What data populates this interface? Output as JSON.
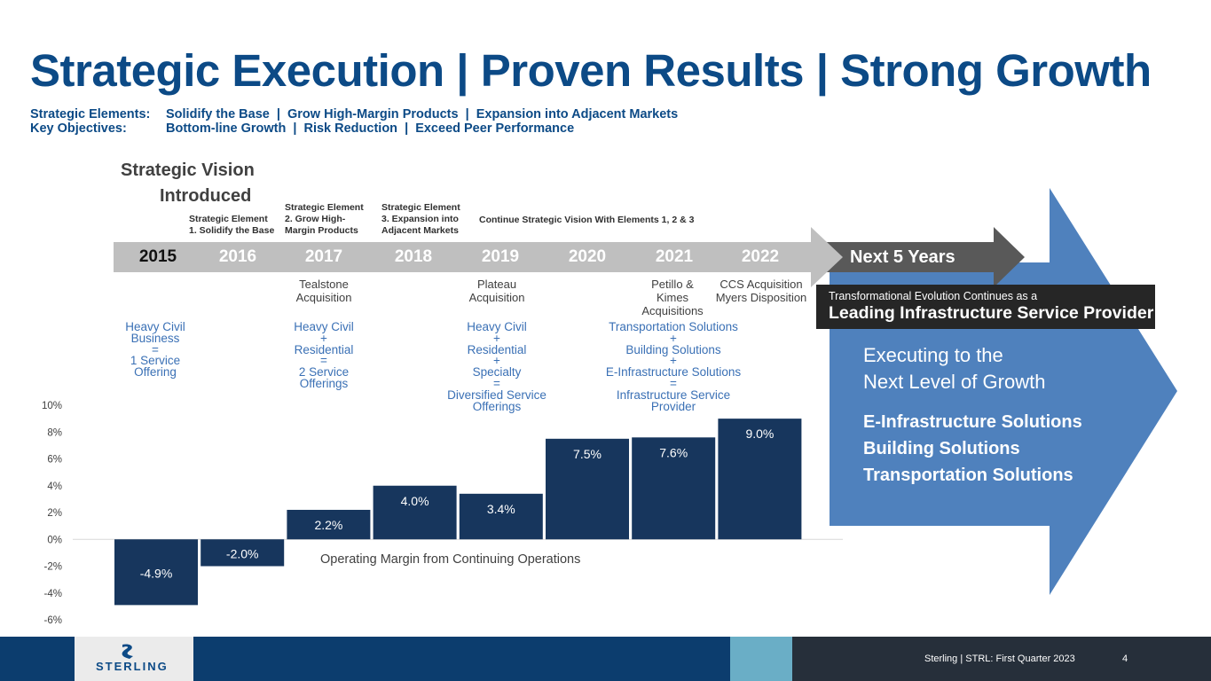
{
  "title": "Strategic Execution | Proven Results | Strong Growth",
  "strategic_elements": {
    "label": "Strategic Elements:",
    "text": "Solidify the Base  |  Grow High-Margin Products  |  Expansion into Adjacent Markets"
  },
  "key_objectives": {
    "label": "Key Objectives:",
    "text": "Bottom-line Growth  |  Risk Reduction  |  Exceed Peer Performance"
  },
  "vision": {
    "line1": "Strategic Vision",
    "line2": "Introduced"
  },
  "strategic_element_notes": [
    {
      "line1": "Strategic Element",
      "line2": "1. Solidify the Base"
    },
    {
      "line1": "Strategic Element",
      "line2": "2. Grow High-",
      "line3": "Margin Products"
    },
    {
      "line1": "Strategic Element",
      "line2": "3. Expansion into",
      "line3": "Adjacent Markets"
    },
    {
      "line1": "Continue Strategic Vision With Elements 1, 2 & 3"
    }
  ],
  "timeline": {
    "years": [
      "2015",
      "2016",
      "2017",
      "2018",
      "2019",
      "2020",
      "2021",
      "2022"
    ],
    "next": "Next 5 Years"
  },
  "acquisitions": [
    {
      "line1": "Tealstone",
      "line2": "Acquisition"
    },
    {
      "line1": "Plateau",
      "line2": "Acquisition"
    },
    {
      "line1": "Petillo &",
      "line2": "Kimes",
      "line3": "Acquisitions"
    },
    {
      "line1": "CCS Acquisition",
      "line2": "Myers Disposition"
    }
  ],
  "offerings": [
    {
      "lines": [
        "Heavy Civil",
        "Business",
        "=",
        "1 Service",
        "Offering"
      ]
    },
    {
      "lines": [
        "Heavy Civil",
        "+",
        "Residential",
        "=",
        "2 Service",
        "Offerings"
      ]
    },
    {
      "lines": [
        "Heavy Civil",
        "+",
        "Residential",
        "+",
        "Specialty",
        "=",
        "Diversified Service",
        "Offerings"
      ]
    },
    {
      "lines": [
        "Transportation Solutions",
        "+",
        "Building Solutions",
        "+",
        "E-Infrastructure Solutions",
        "=",
        "Infrastructure Service",
        "Provider"
      ]
    }
  ],
  "transformation": {
    "line1": "Transformational Evolution Continues as a",
    "line2": "Leading Infrastructure Service Provider"
  },
  "executing": {
    "line1": "Executing to the",
    "line2": "Next Level of Growth"
  },
  "solutions": [
    "E-Infrastructure Solutions",
    "Building Solutions",
    "Transportation Solutions"
  ],
  "chart_data": {
    "type": "bar",
    "categories": [
      "2015",
      "2016",
      "2017",
      "2018",
      "2019",
      "2020",
      "2021",
      "2022"
    ],
    "values": [
      -4.9,
      -2.0,
      2.2,
      4.0,
      3.4,
      7.5,
      7.6,
      9.0
    ],
    "data_labels": [
      "-4.9%",
      "-2.0%",
      "2.2%",
      "4.0%",
      "3.4%",
      "7.5%",
      "7.6%",
      "9.0%"
    ],
    "series_label": "Operating Margin from Continuing Operations",
    "ylim": [
      -6,
      10
    ],
    "yticks": [
      "10%",
      "8%",
      "6%",
      "4%",
      "2%",
      "0%",
      "-2%",
      "-4%",
      "-6%"
    ],
    "ytick_values": [
      10,
      8,
      6,
      4,
      2,
      0,
      -2,
      -4,
      -6
    ],
    "grid": false,
    "colors": {
      "bar": "#17365d",
      "label": "#ffffff",
      "baseline": "#d9d9d9"
    }
  },
  "footer": {
    "logo_text": "STERLING",
    "text": "Sterling | STRL:  First Quarter 2023",
    "page": "4",
    "colors": {
      "navy": "#0c3d6e",
      "light_blue": "#6aaec6",
      "dark": "#262f3a",
      "logo_bg": "#ebebeb"
    }
  },
  "colors": {
    "title": "#0c4a86",
    "arrow_blue": "#4f81bd",
    "band_gray": "#bfbfbf",
    "next_arrow": "#595959"
  }
}
